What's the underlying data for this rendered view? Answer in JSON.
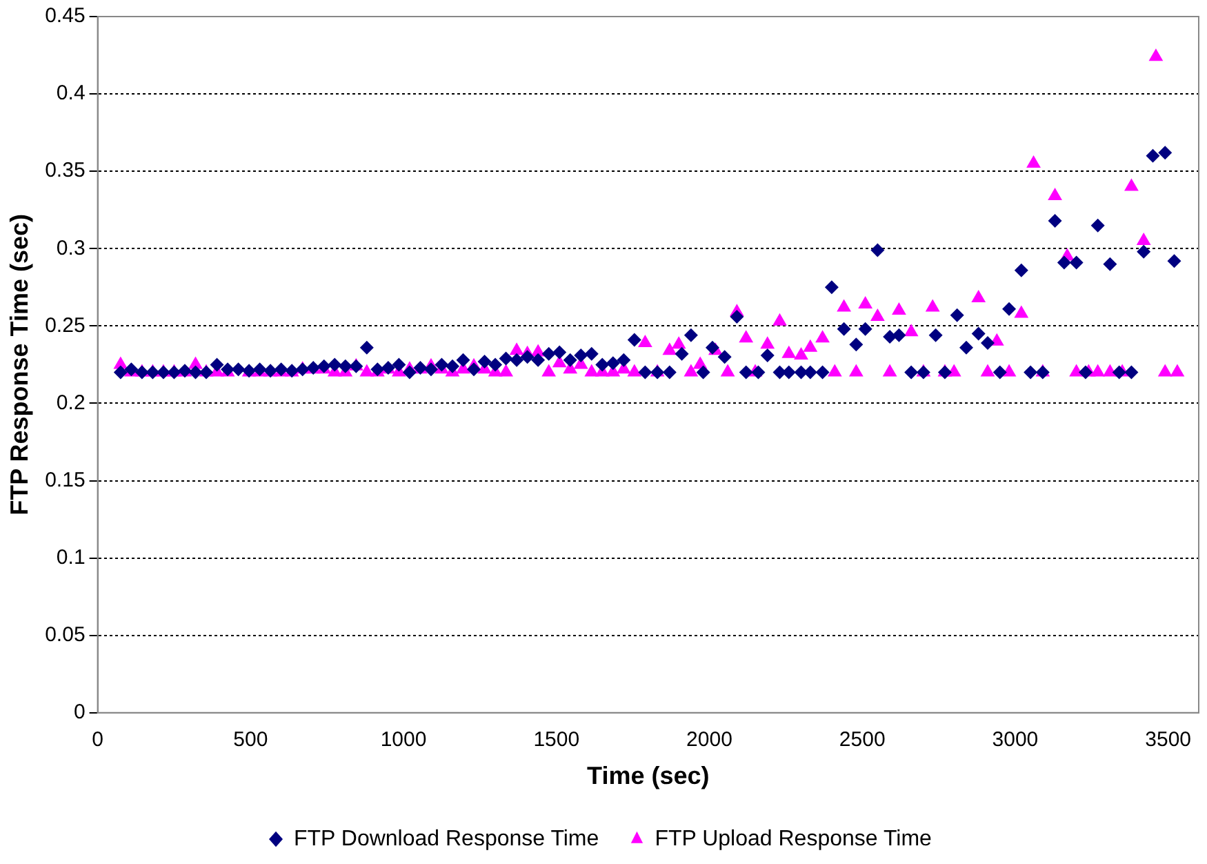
{
  "chart_data": {
    "type": "scatter",
    "xlabel": "Time (sec)",
    "ylabel": "FTP Response Time (sec)",
    "xlim": [
      0,
      3600
    ],
    "xticks": [
      0,
      500,
      1000,
      1500,
      2000,
      2500,
      3000,
      3500
    ],
    "ylim": [
      0,
      0.45
    ],
    "yticks": [
      0,
      0.05,
      0.1,
      0.15,
      0.2,
      0.25,
      0.3,
      0.35,
      0.4,
      0.45
    ],
    "grid": "y",
    "legend": "bottom",
    "series": [
      {
        "name": "FTP Download Response Time",
        "color": "#000080",
        "marker": "diamond",
        "x": [
          75,
          110,
          145,
          180,
          215,
          250,
          285,
          320,
          355,
          390,
          425,
          460,
          495,
          530,
          565,
          600,
          635,
          670,
          705,
          740,
          775,
          810,
          845,
          880,
          915,
          950,
          985,
          1020,
          1055,
          1090,
          1125,
          1160,
          1195,
          1230,
          1265,
          1300,
          1335,
          1370,
          1405,
          1440,
          1475,
          1510,
          1545,
          1580,
          1615,
          1650,
          1685,
          1720,
          1755,
          1790,
          1830,
          1870,
          1910,
          1940,
          1980,
          2010,
          2050,
          2090,
          2120,
          2160,
          2190,
          2230,
          2260,
          2300,
          2330,
          2370,
          2400,
          2440,
          2480,
          2510,
          2550,
          2590,
          2620,
          2660,
          2700,
          2740,
          2770,
          2810,
          2840,
          2880,
          2910,
          2950,
          2980,
          3020,
          3050,
          3090,
          3130,
          3160,
          3200,
          3230,
          3270,
          3310,
          3340,
          3380,
          3420,
          3450,
          3490,
          3520
        ],
        "values": [
          0.22,
          0.222,
          0.22,
          0.22,
          0.22,
          0.22,
          0.221,
          0.22,
          0.22,
          0.225,
          0.222,
          0.222,
          0.221,
          0.222,
          0.221,
          0.222,
          0.221,
          0.222,
          0.223,
          0.224,
          0.225,
          0.224,
          0.224,
          0.236,
          0.222,
          0.223,
          0.225,
          0.22,
          0.223,
          0.222,
          0.225,
          0.224,
          0.228,
          0.222,
          0.227,
          0.225,
          0.229,
          0.228,
          0.23,
          0.228,
          0.232,
          0.233,
          0.228,
          0.231,
          0.232,
          0.225,
          0.226,
          0.228,
          0.241,
          0.22,
          0.22,
          0.22,
          0.232,
          0.244,
          0.22,
          0.236,
          0.23,
          0.256,
          0.22,
          0.22,
          0.231,
          0.22,
          0.22,
          0.22,
          0.22,
          0.22,
          0.275,
          0.248,
          0.238,
          0.248,
          0.299,
          0.243,
          0.244,
          0.22,
          0.22,
          0.244,
          0.22,
          0.257,
          0.236,
          0.245,
          0.239,
          0.22,
          0.261,
          0.286,
          0.22,
          0.22,
          0.318,
          0.291,
          0.291,
          0.22,
          0.315,
          0.29,
          0.22,
          0.22,
          0.298,
          0.36,
          0.362,
          0.292
        ]
      },
      {
        "name": "FTP Upload Response Time",
        "color": "#ff00ff",
        "marker": "triangle",
        "x": [
          75,
          110,
          145,
          180,
          215,
          250,
          285,
          320,
          355,
          390,
          425,
          460,
          495,
          530,
          565,
          600,
          635,
          670,
          705,
          740,
          775,
          810,
          845,
          880,
          915,
          950,
          985,
          1020,
          1055,
          1090,
          1125,
          1160,
          1195,
          1230,
          1265,
          1300,
          1335,
          1370,
          1405,
          1440,
          1475,
          1510,
          1545,
          1580,
          1615,
          1650,
          1685,
          1720,
          1755,
          1790,
          1830,
          1870,
          1900,
          1940,
          1970,
          2020,
          2060,
          2090,
          2120,
          2150,
          2190,
          2230,
          2260,
          2300,
          2330,
          2370,
          2410,
          2440,
          2480,
          2510,
          2550,
          2590,
          2620,
          2660,
          2700,
          2730,
          2770,
          2800,
          2880,
          2910,
          2940,
          2980,
          3020,
          3060,
          3090,
          3130,
          3170,
          3200,
          3240,
          3270,
          3310,
          3350,
          3380,
          3420,
          3460,
          3490,
          3530
        ],
        "values": [
          0.225,
          0.22,
          0.22,
          0.22,
          0.22,
          0.22,
          0.22,
          0.225,
          0.22,
          0.22,
          0.22,
          null,
          0.22,
          0.22,
          0.22,
          0.22,
          0.22,
          0.222,
          0.222,
          0.222,
          0.22,
          0.22,
          0.224,
          0.22,
          0.22,
          0.222,
          0.22,
          0.222,
          0.222,
          0.224,
          0.222,
          0.22,
          0.222,
          0.224,
          0.222,
          0.22,
          0.22,
          0.234,
          0.232,
          0.233,
          0.22,
          0.226,
          0.222,
          0.225,
          0.22,
          0.22,
          0.22,
          0.222,
          0.22,
          0.239,
          0.22,
          0.234,
          0.238,
          0.22,
          0.225,
          0.234,
          0.22,
          0.259,
          0.242,
          0.22,
          0.238,
          0.253,
          0.232,
          0.231,
          0.236,
          0.242,
          0.22,
          0.262,
          0.22,
          0.264,
          0.256,
          0.22,
          0.26,
          0.246,
          0.22,
          0.262,
          0.22,
          0.22,
          0.268,
          0.22,
          0.24,
          0.22,
          0.258,
          0.355,
          0.22,
          0.334,
          0.295,
          0.22,
          0.22,
          0.22,
          0.22,
          0.22,
          0.34,
          0.305,
          0.424,
          0.22,
          0.22
        ]
      }
    ]
  }
}
